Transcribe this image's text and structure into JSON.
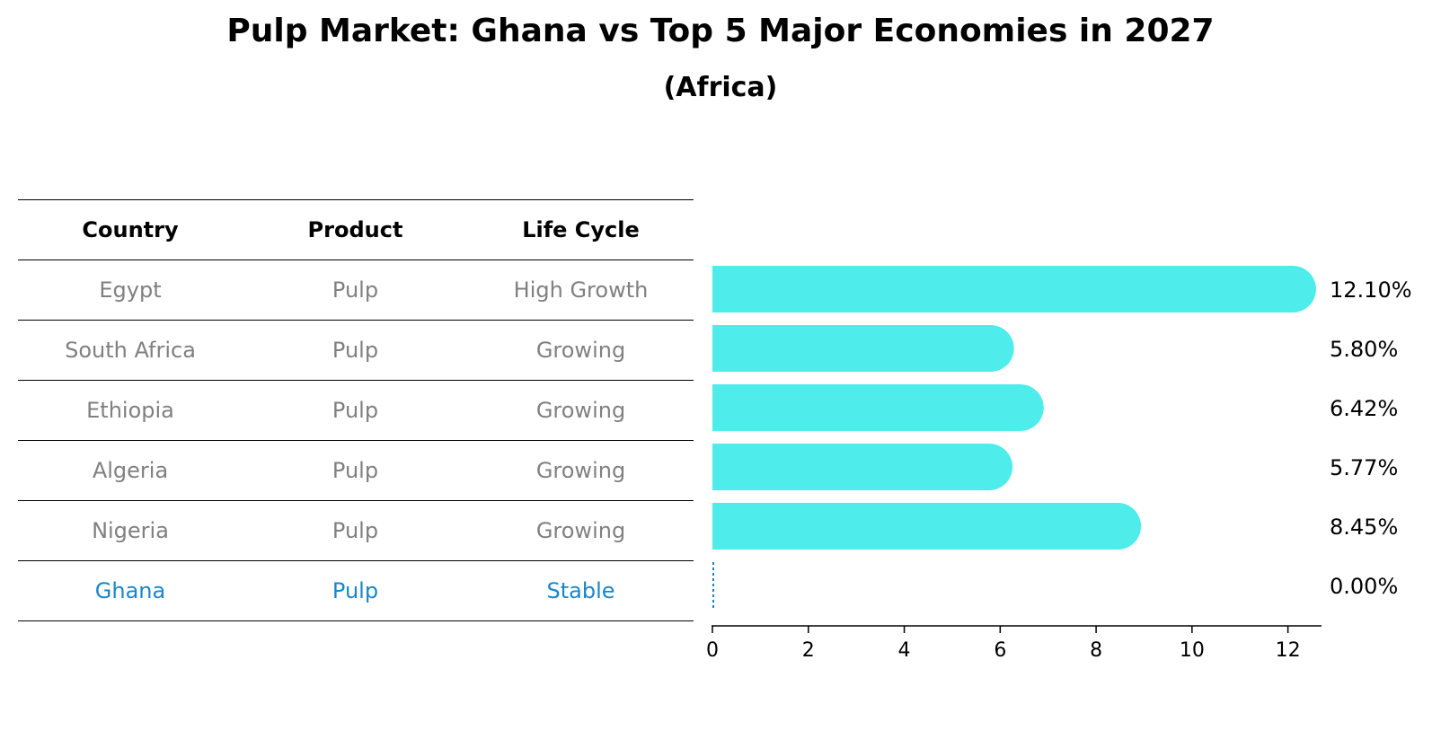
{
  "title": "Pulp Market: Ghana vs Top 5 Major Economies in 2027",
  "subtitle": "(Africa)",
  "colors": {
    "bar": "#4EEDEB",
    "highlight": "#1A86C8",
    "muted": "#808080"
  },
  "table": {
    "headers": [
      "Country",
      "Product",
      "Life Cycle"
    ],
    "rows": [
      [
        "Egypt",
        "Pulp",
        "High Growth"
      ],
      [
        "South Africa",
        "Pulp",
        "Growing"
      ],
      [
        "Ethiopia",
        "Pulp",
        "Growing"
      ],
      [
        "Algeria",
        "Pulp",
        "Growing"
      ],
      [
        "Nigeria",
        "Pulp",
        "Growing"
      ],
      [
        "Ghana",
        "Pulp",
        "Stable"
      ]
    ],
    "highlight_row": "Ghana"
  },
  "chart_data": {
    "type": "bar",
    "orientation": "horizontal",
    "categories": [
      "Egypt",
      "South Africa",
      "Ethiopia",
      "Algeria",
      "Nigeria",
      "Ghana"
    ],
    "values": [
      12.1,
      5.8,
      6.42,
      5.77,
      8.45,
      0.0
    ],
    "value_labels": [
      "12.10%",
      "5.80%",
      "6.42%",
      "5.77%",
      "8.45%",
      "0.00%"
    ],
    "xticks": [
      0,
      2,
      4,
      6,
      8,
      10,
      12
    ],
    "xlim": [
      0,
      12.7
    ],
    "xlabel": "",
    "ylabel": "",
    "grid": false
  }
}
